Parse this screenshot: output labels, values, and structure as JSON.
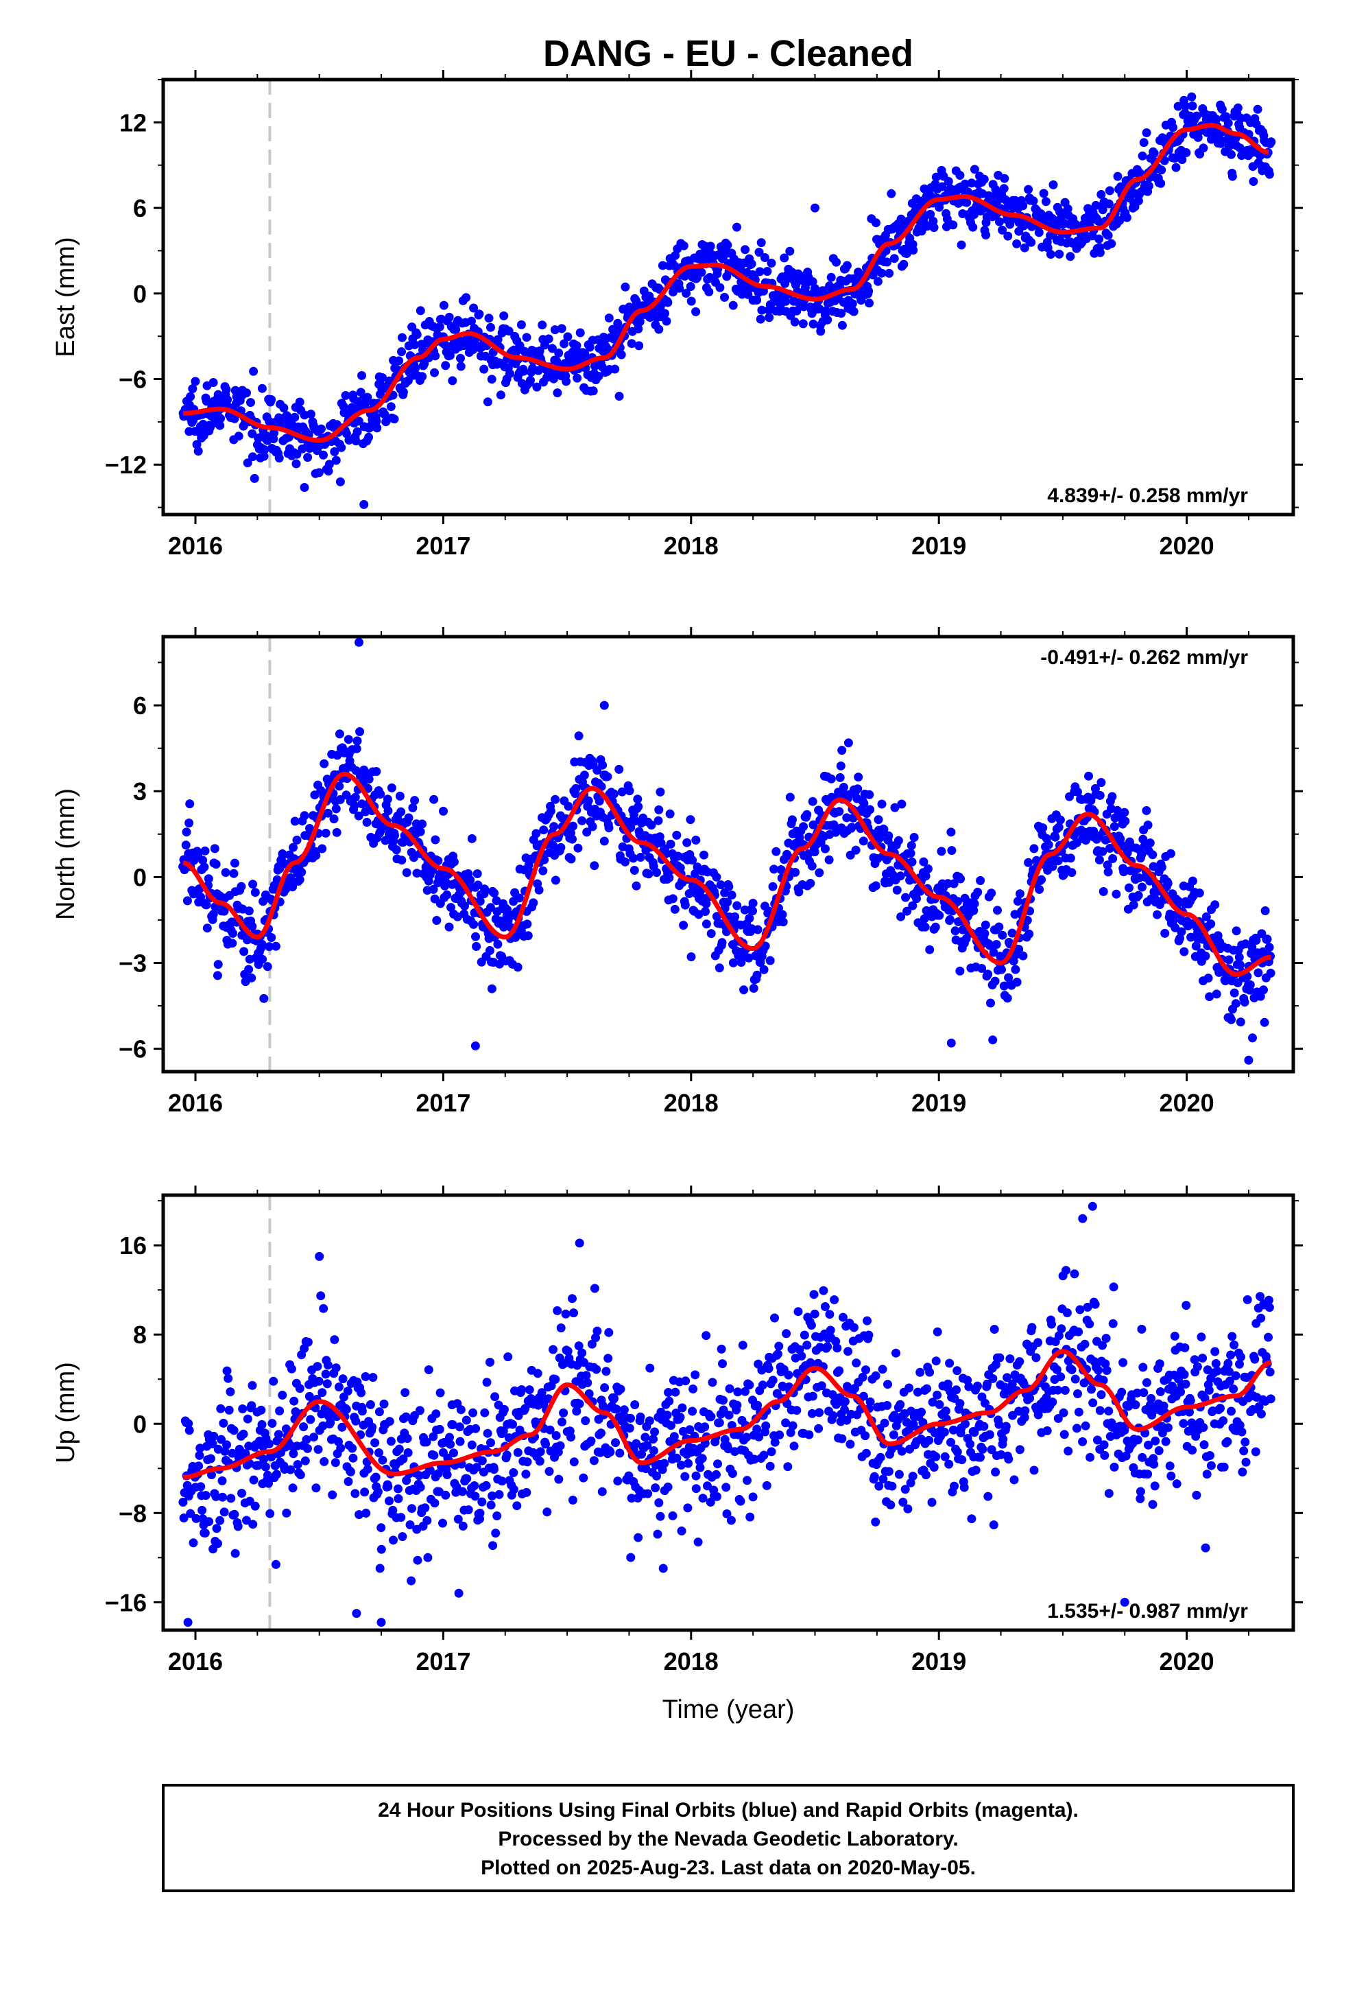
{
  "figure": {
    "title": "DANG  - EU - Cleaned",
    "footer_lines": [
      "24 Hour Positions Using Final Orbits (blue) and Rapid Orbits (magenta).",
      "Processed by the Nevada Geodetic Laboratory.",
      "Plotted on 2025-Aug-23. Last data on 2020-May-05."
    ],
    "colors": {
      "points": "#0000ff",
      "fit": "#ff0000",
      "marker_line": "#c8c8c8",
      "axes": "#000000"
    }
  },
  "chart_data": [
    {
      "type": "scatter",
      "ylabel": "East (mm)",
      "xlabel": "",
      "xlim": [
        2015.87,
        2020.43
      ],
      "ylim": [
        -15.5,
        15
      ],
      "xticks": [
        2016,
        2017,
        2018,
        2019,
        2020
      ],
      "yticks": [
        12,
        6,
        0,
        -6,
        -12
      ],
      "ytick_labels": [
        "12",
        "6",
        "0",
        "−6",
        "−12"
      ],
      "vertical_marker_x": 2016.3,
      "rate_label": "4.839+/- 0.258 mm/yr",
      "rate_label_position": "bottom-right",
      "fit": {
        "x": [
          2015.95,
          2016.1,
          2016.3,
          2016.5,
          2016.7,
          2016.9,
          2017.0,
          2017.1,
          2017.3,
          2017.5,
          2017.65,
          2017.8,
          2018.0,
          2018.1,
          2018.3,
          2018.5,
          2018.65,
          2018.8,
          2019.0,
          2019.1,
          2019.3,
          2019.5,
          2019.65,
          2019.8,
          2020.0,
          2020.1,
          2020.2,
          2020.33
        ],
        "y": [
          -8.4,
          -8.1,
          -9.4,
          -10.3,
          -8.2,
          -4.5,
          -3.2,
          -2.8,
          -4.5,
          -5.3,
          -4.5,
          -1.2,
          1.9,
          2.0,
          0.5,
          -0.4,
          0.3,
          3.5,
          6.6,
          6.8,
          5.5,
          4.3,
          4.6,
          8.0,
          11.5,
          11.8,
          11.2,
          9.9
        ]
      },
      "scatter_model": {
        "x_start": 2015.95,
        "x_end": 2020.34,
        "count": 1480,
        "noise_sd": 1.1,
        "outliers": [
          [
            2016.68,
            -14.8
          ],
          [
            2018.5,
            6.0
          ],
          [
            2016.44,
            -13.6
          ],
          [
            2017.18,
            -7.6
          ],
          [
            2017.71,
            -7.2
          ]
        ]
      }
    },
    {
      "type": "scatter",
      "ylabel": "North (mm)",
      "xlabel": "",
      "xlim": [
        2015.87,
        2020.43
      ],
      "ylim": [
        -6.8,
        8.4
      ],
      "xticks": [
        2016,
        2017,
        2018,
        2019,
        2020
      ],
      "yticks": [
        6,
        3,
        0,
        -3,
        -6
      ],
      "ytick_labels": [
        "6",
        "3",
        "0",
        "−3",
        "−6"
      ],
      "vertical_marker_x": 2016.3,
      "rate_label": "-0.491+/- 0.262 mm/yr",
      "rate_label_position": "top-right",
      "fit": {
        "x": [
          2015.95,
          2016.1,
          2016.25,
          2016.4,
          2016.6,
          2016.8,
          2017.0,
          2017.25,
          2017.45,
          2017.6,
          2017.8,
          2018.0,
          2018.25,
          2018.45,
          2018.6,
          2018.8,
          2019.0,
          2019.25,
          2019.45,
          2019.6,
          2019.8,
          2020.0,
          2020.2,
          2020.34
        ],
        "y": [
          0.5,
          -0.9,
          -2.1,
          0.5,
          3.6,
          1.8,
          0.3,
          -2.1,
          1.5,
          3.1,
          1.2,
          -0.1,
          -2.5,
          1.0,
          2.7,
          0.8,
          -0.7,
          -3.0,
          0.8,
          2.2,
          0.4,
          -1.3,
          -3.4,
          -2.8
        ]
      },
      "scatter_model": {
        "x_start": 2015.95,
        "x_end": 2020.34,
        "count": 1480,
        "noise_sd": 0.85,
        "outliers": [
          [
            2016.66,
            8.2
          ],
          [
            2017.13,
            -5.9
          ],
          [
            2020.25,
            -6.4
          ],
          [
            2017.65,
            6.0
          ],
          [
            2019.05,
            -5.8
          ]
        ]
      }
    },
    {
      "type": "scatter",
      "ylabel": "Up (mm)",
      "xlabel": "Time (year)",
      "xlim": [
        2015.87,
        2020.43
      ],
      "ylim": [
        -18.5,
        20.5
      ],
      "xticks": [
        2016,
        2017,
        2018,
        2019,
        2020
      ],
      "yticks": [
        16,
        8,
        0,
        -8,
        -16
      ],
      "ytick_labels": [
        "16",
        "8",
        "0",
        "−8",
        "−16"
      ],
      "vertical_marker_x": 2016.3,
      "rate_label": "1.535+/- 0.987 mm/yr",
      "rate_label_position": "bottom-right",
      "fit": {
        "x": [
          2015.95,
          2016.1,
          2016.3,
          2016.5,
          2016.8,
          2017.0,
          2017.2,
          2017.35,
          2017.5,
          2017.65,
          2017.8,
          2018.0,
          2018.2,
          2018.35,
          2018.5,
          2018.65,
          2018.8,
          2019.0,
          2019.2,
          2019.35,
          2019.5,
          2019.65,
          2019.8,
          2020.0,
          2020.2,
          2020.34
        ],
        "y": [
          -4.8,
          -4.0,
          -2.5,
          2.0,
          -4.5,
          -3.5,
          -2.5,
          -1.0,
          3.5,
          1.0,
          -3.5,
          -1.5,
          -0.5,
          2.0,
          5.0,
          2.5,
          -1.8,
          0.0,
          1.0,
          3.0,
          6.5,
          3.5,
          -0.5,
          1.5,
          2.5,
          5.5
        ]
      },
      "scatter_model": {
        "x_start": 2015.95,
        "x_end": 2020.34,
        "count": 1480,
        "noise_sd": 3.6,
        "outliers": [
          [
            2015.97,
            -17.8
          ],
          [
            2016.65,
            -17.0
          ],
          [
            2016.75,
            -17.8
          ],
          [
            2019.62,
            19.5
          ],
          [
            2017.55,
            16.2
          ],
          [
            2019.75,
            -16.0
          ],
          [
            2016.5,
            15.0
          ],
          [
            2019.58,
            18.4
          ]
        ]
      }
    }
  ]
}
